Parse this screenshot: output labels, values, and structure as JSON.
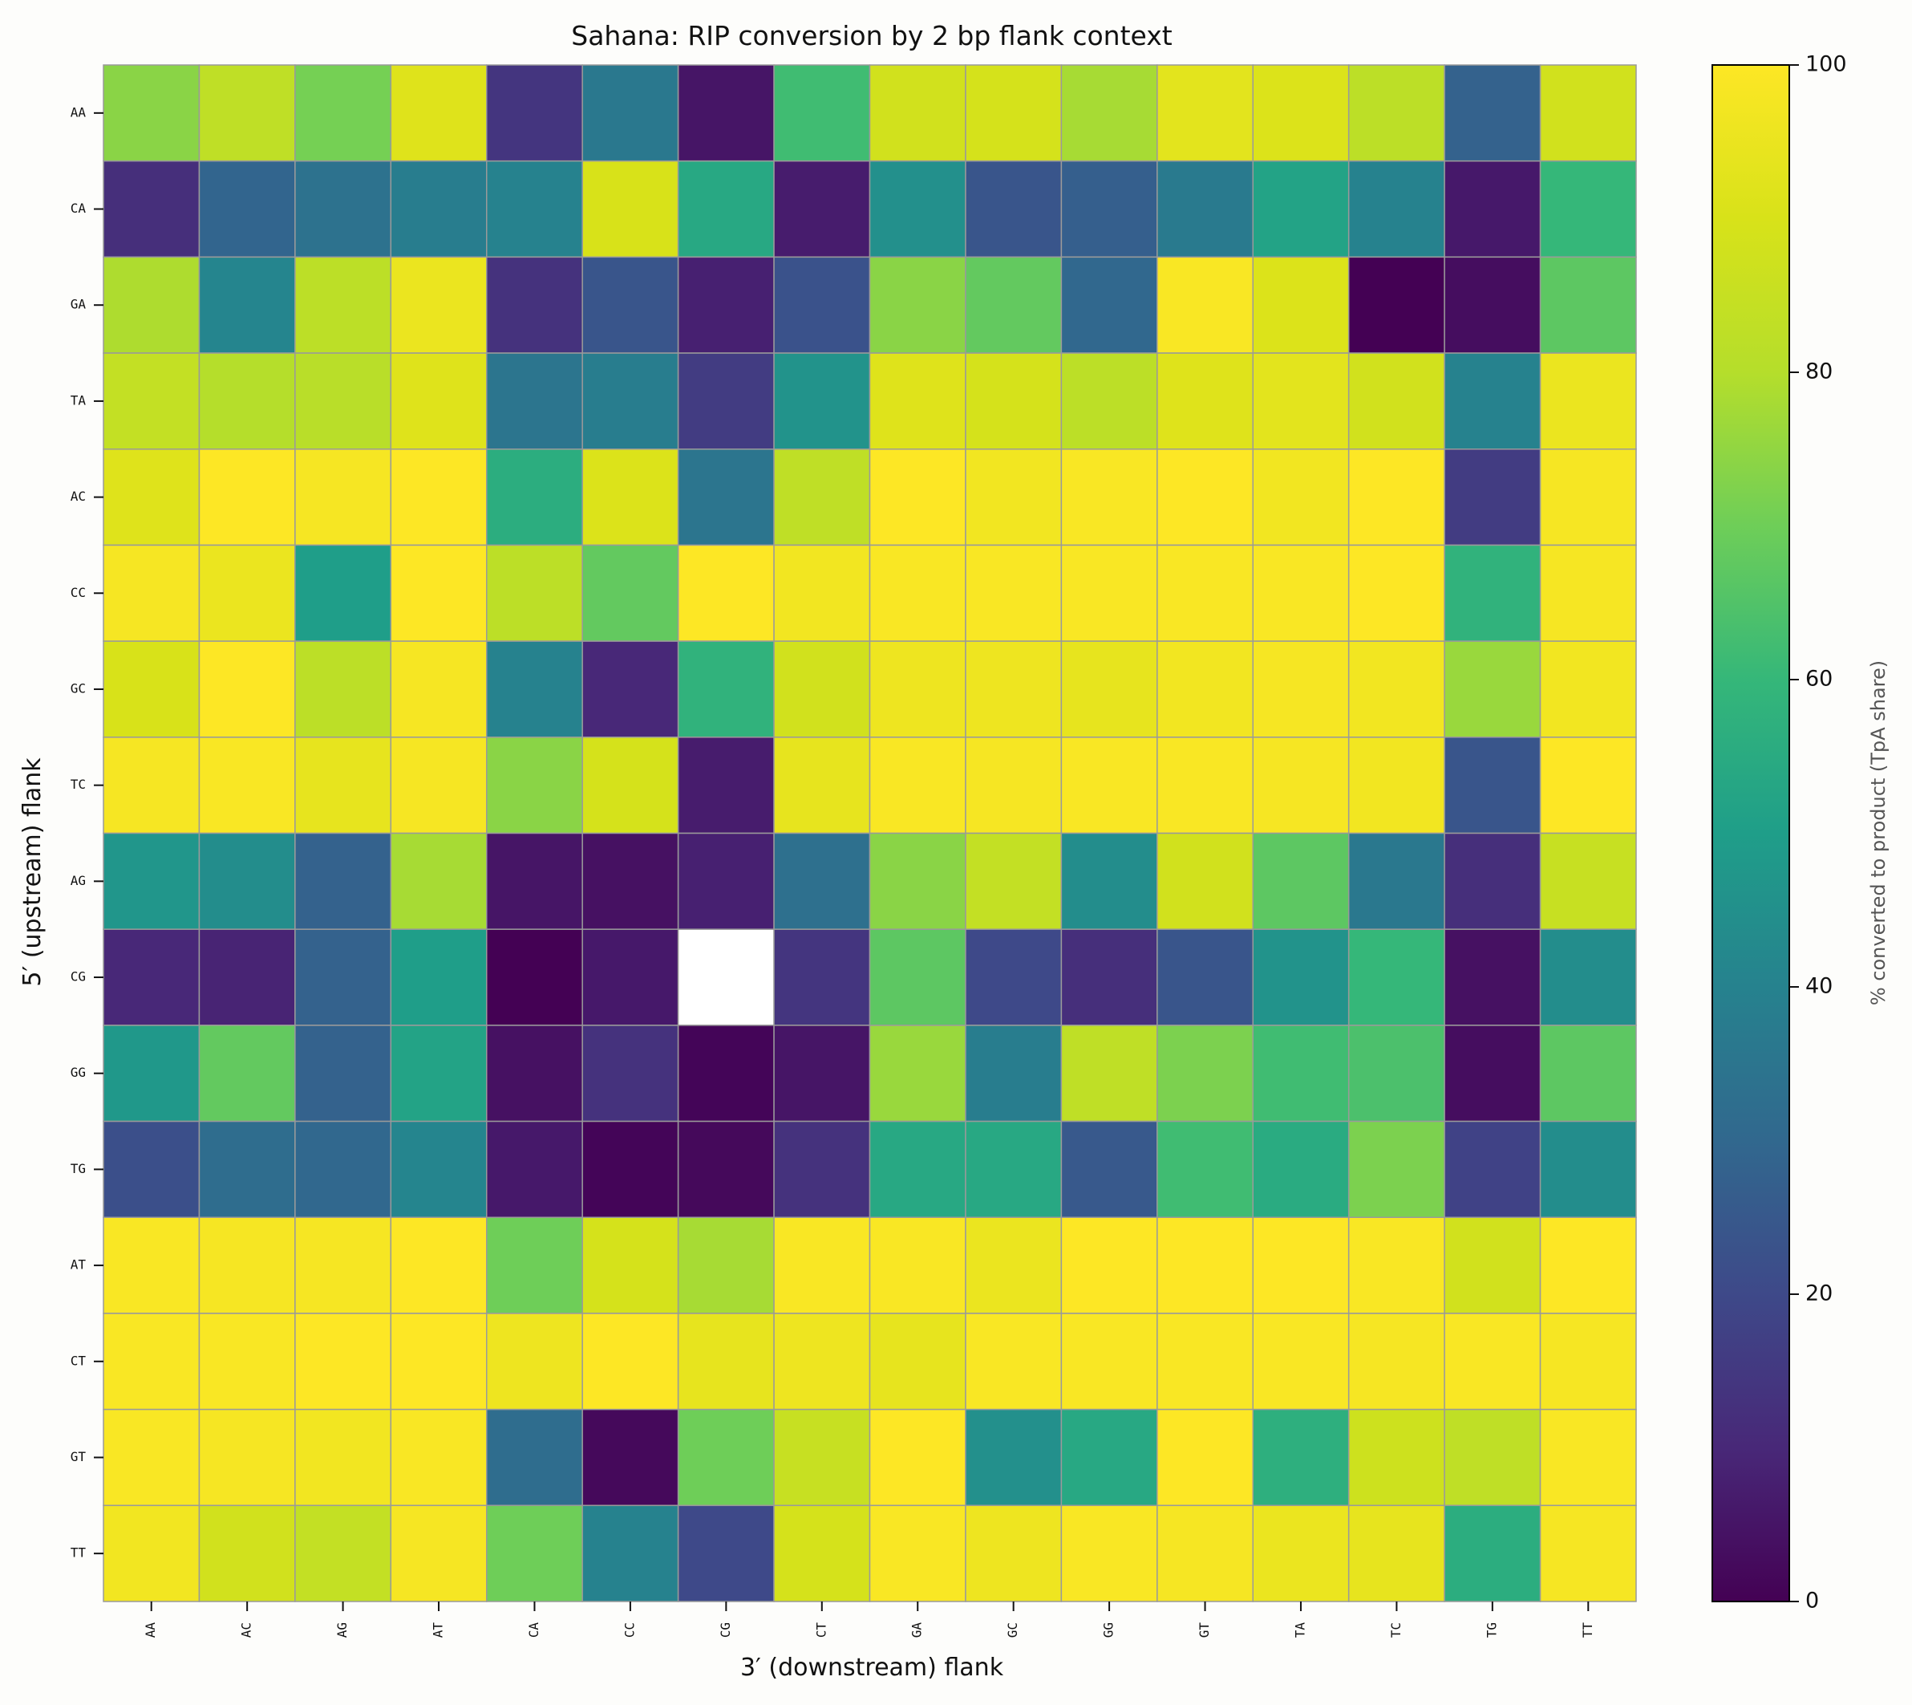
{
  "chart_data": {
    "type": "heatmap",
    "title": "Sahana: RIP conversion by 2 bp flank context",
    "xlabel": "3′ (downstream) flank",
    "ylabel": "5′ (upstream) flank",
    "colorbar_label": "% converted to product (TpA share)",
    "colormap": "viridis",
    "vmin": 0,
    "vmax": 100,
    "colorbar_ticks": [
      "0",
      "20",
      "40",
      "60",
      "80",
      "100"
    ],
    "x_categories": [
      "AA",
      "AC",
      "AG",
      "AT",
      "CA",
      "CC",
      "CG",
      "CT",
      "GA",
      "GC",
      "GG",
      "GT",
      "TA",
      "TC",
      "TG",
      "TT"
    ],
    "y_categories": [
      "AA",
      "CA",
      "GA",
      "TA",
      "AC",
      "CC",
      "GC",
      "TC",
      "AG",
      "CG",
      "GG",
      "TG",
      "AT",
      "CT",
      "GT",
      "TT"
    ],
    "values": [
      [
        74,
        83,
        71,
        92,
        14,
        36,
        5,
        62,
        88,
        89,
        78,
        93,
        91,
        82,
        28,
        88
      ],
      [
        12,
        29,
        34,
        38,
        40,
        90,
        54,
        7,
        45,
        24,
        27,
        37,
        52,
        40,
        6,
        60
      ],
      [
        79,
        41,
        82,
        95,
        13,
        24,
        8,
        23,
        74,
        68,
        30,
        99,
        91,
        0,
        3,
        67
      ],
      [
        84,
        80,
        81,
        92,
        35,
        38,
        16,
        46,
        92,
        89,
        82,
        92,
        93,
        88,
        40,
        95
      ],
      [
        92,
        100,
        98,
        100,
        56,
        91,
        35,
        83,
        100,
        97,
        99,
        100,
        97,
        100,
        16,
        98
      ],
      [
        98,
        95,
        50,
        100,
        82,
        68,
        100,
        97,
        99,
        99,
        99,
        99,
        99,
        100,
        58,
        98
      ],
      [
        90,
        100,
        82,
        98,
        40,
        10,
        58,
        88,
        96,
        96,
        94,
        97,
        98,
        97,
        76,
        97
      ],
      [
        98,
        99,
        94,
        98,
        74,
        89,
        7,
        94,
        99,
        98,
        99,
        99,
        98,
        97,
        24,
        100
      ],
      [
        47,
        44,
        28,
        78,
        5,
        4,
        8,
        33,
        74,
        84,
        44,
        88,
        67,
        36,
        12,
        85
      ],
      [
        10,
        9,
        28,
        50,
        0,
        6,
        null,
        14,
        67,
        20,
        12,
        24,
        46,
        60,
        4,
        44
      ],
      [
        48,
        68,
        28,
        52,
        4,
        13,
        1,
        5,
        76,
        38,
        83,
        72,
        62,
        64,
        3,
        67
      ],
      [
        22,
        32,
        30,
        41,
        6,
        1,
        2,
        13,
        54,
        54,
        25,
        62,
        55,
        72,
        18,
        44
      ],
      [
        99,
        98,
        98,
        100,
        70,
        89,
        78,
        99,
        99,
        95,
        100,
        100,
        100,
        99,
        88,
        100
      ],
      [
        99,
        99,
        100,
        100,
        96,
        100,
        94,
        96,
        94,
        99,
        99,
        99,
        99,
        98,
        99,
        98
      ],
      [
        99,
        98,
        97,
        99,
        32,
        2,
        70,
        85,
        100,
        45,
        54,
        100,
        57,
        87,
        83,
        99
      ],
      [
        97,
        88,
        84,
        98,
        70,
        40,
        20,
        89,
        99,
        96,
        99,
        98,
        95,
        94,
        56,
        98
      ]
    ]
  }
}
